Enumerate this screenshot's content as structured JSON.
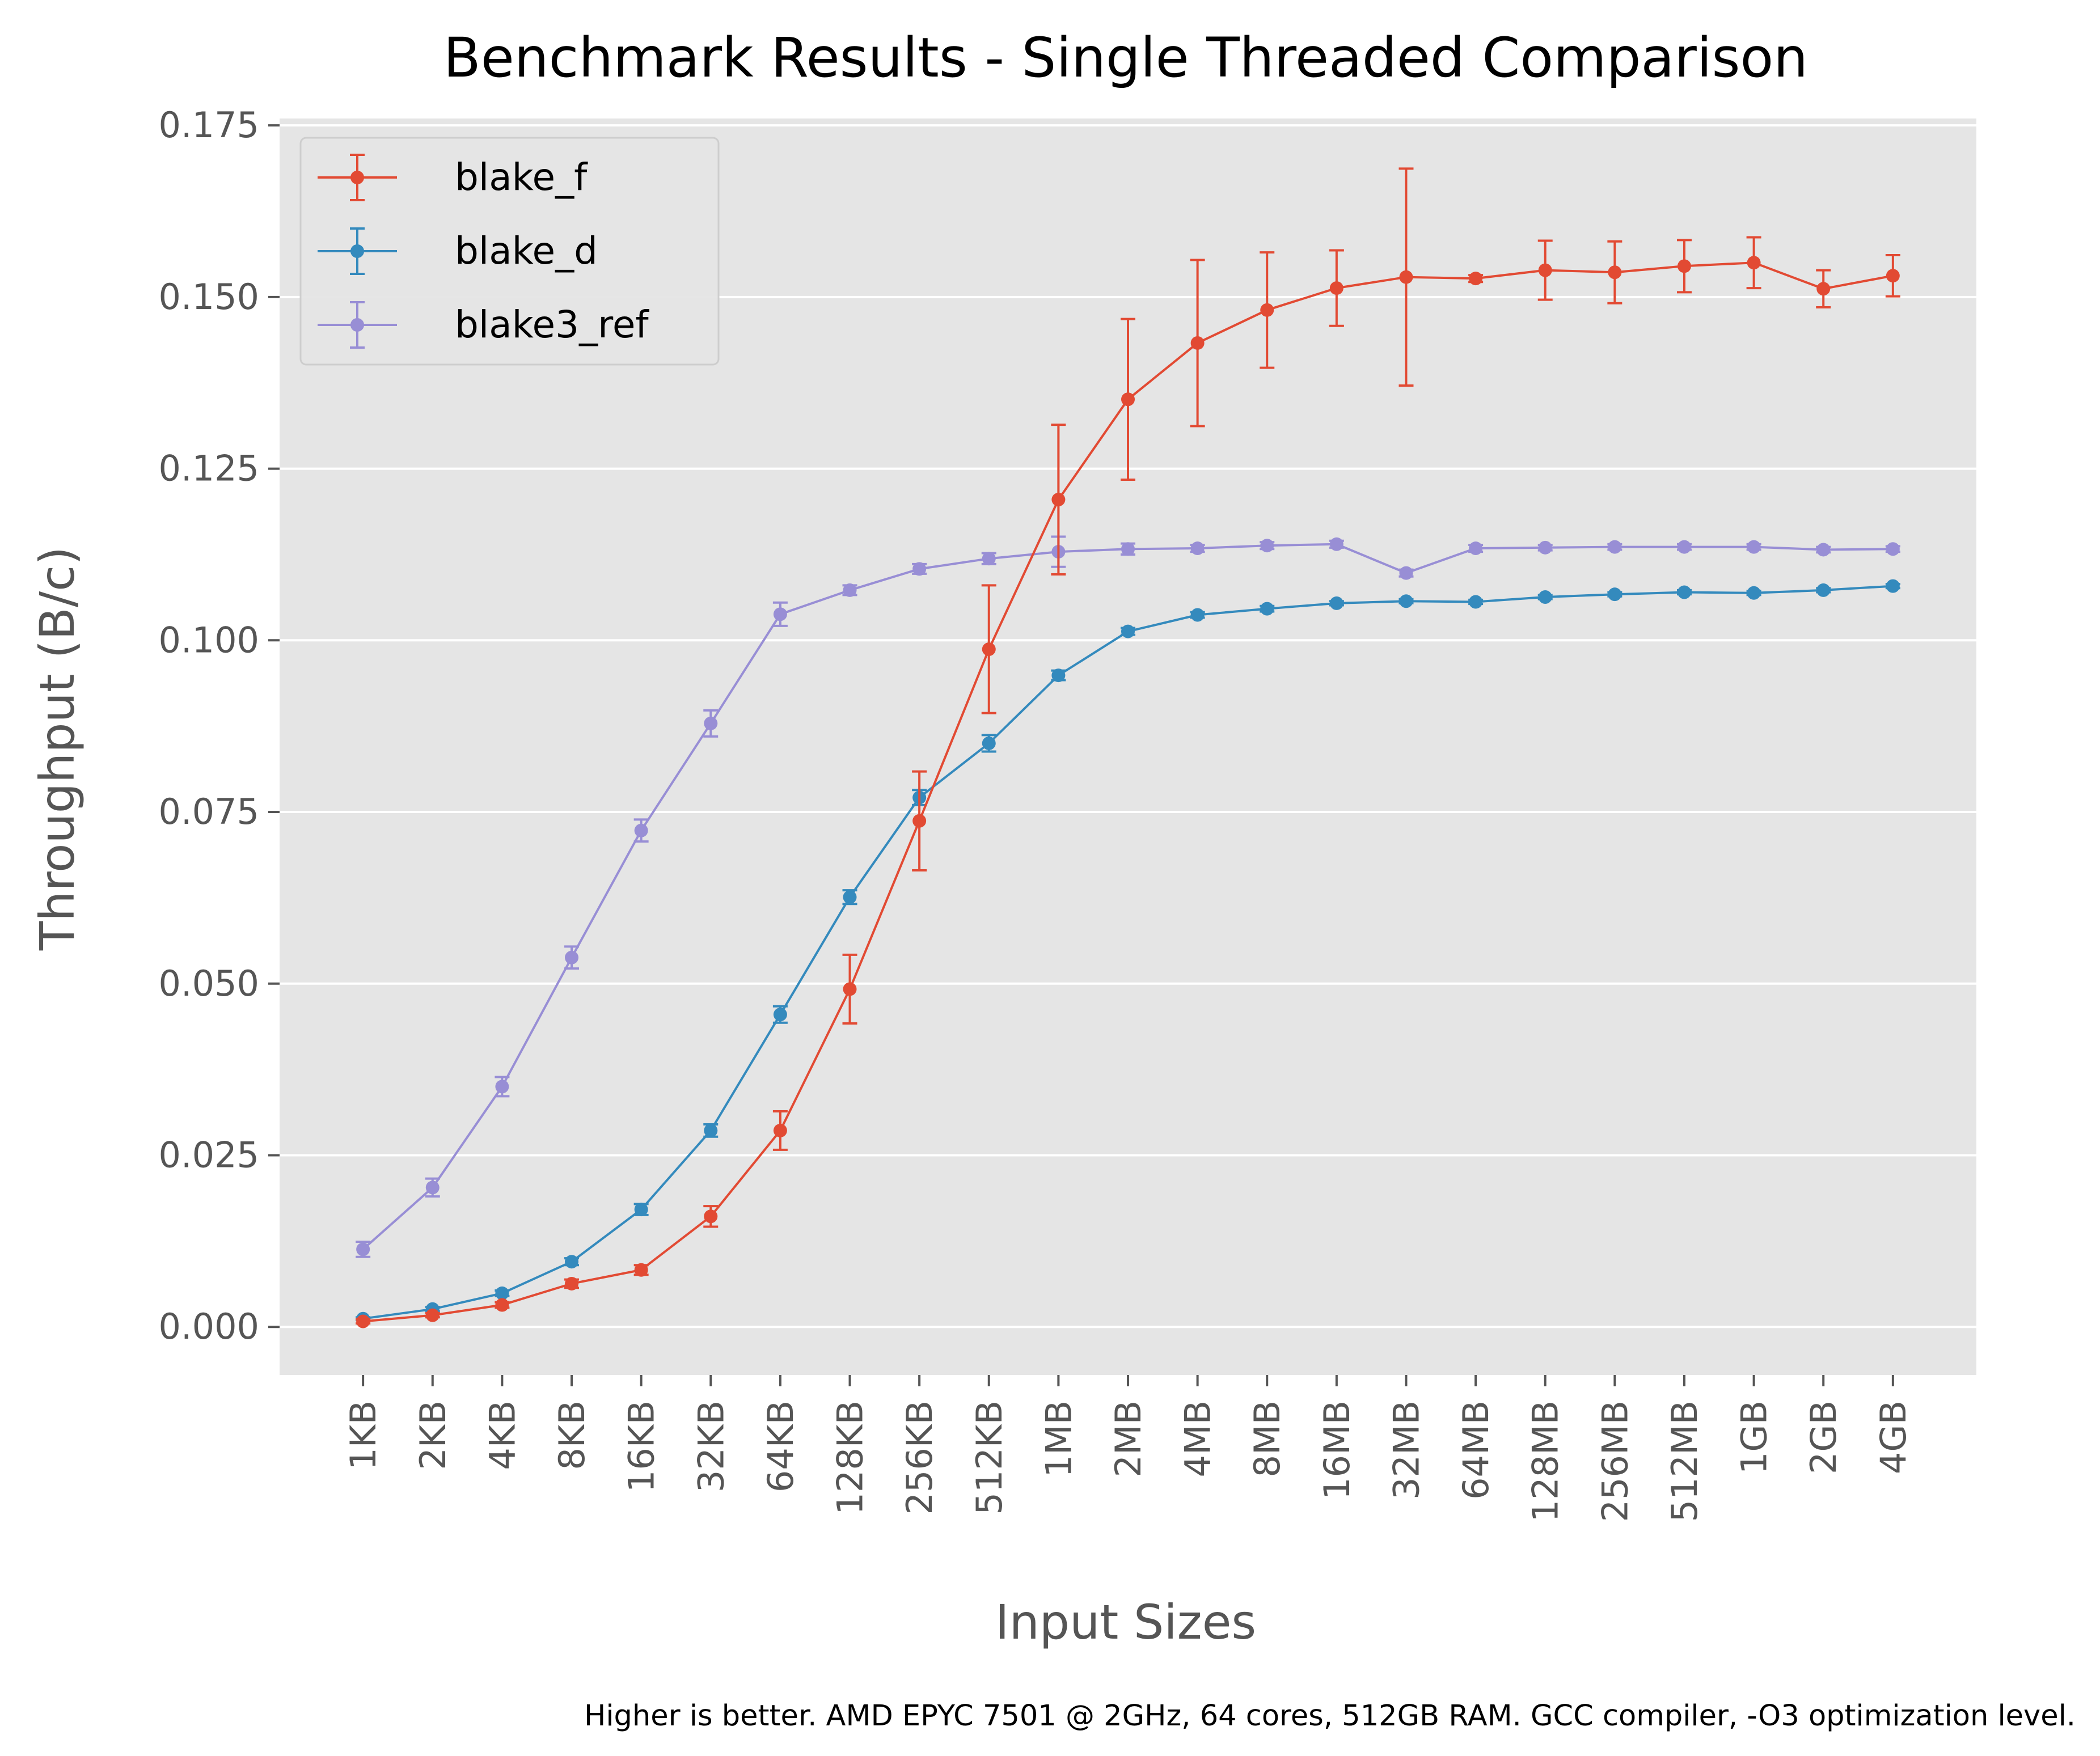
{
  "chart_data": {
    "type": "line",
    "title": "Benchmark Results - Single Threaded Comparison",
    "xlabel": "Input Sizes",
    "ylabel": "Throughput (B/c)",
    "footnote": "Higher is better. AMD EPYC 7501 @ 2GHz, 64 cores, 512GB RAM. GCC compiler, -O3 optimization level.",
    "categories": [
      "1KB",
      "2KB",
      "4KB",
      "8KB",
      "16KB",
      "32KB",
      "64KB",
      "128KB",
      "256KB",
      "512KB",
      "1MB",
      "2MB",
      "4MB",
      "8MB",
      "16MB",
      "32MB",
      "64MB",
      "128MB",
      "256MB",
      "512MB",
      "1GB",
      "2GB",
      "4GB"
    ],
    "yticks": [
      "0.000",
      "0.025",
      "0.050",
      "0.075",
      "0.100",
      "0.125",
      "0.150",
      "0.175"
    ],
    "ylim": [
      -0.007,
      0.176
    ],
    "grid": true,
    "legend_position": "top-left",
    "series": [
      {
        "name": "blake_f",
        "color": "#E24A33",
        "values": [
          0.0008,
          0.0017,
          0.0032,
          0.0063,
          0.0083,
          0.0161,
          0.0286,
          0.0492,
          0.0737,
          0.0987,
          0.1205,
          0.1351,
          0.1433,
          0.1481,
          0.1513,
          0.1529,
          0.1527,
          0.1539,
          0.1536,
          0.1545,
          0.155,
          0.1512,
          0.1531
        ],
        "errors": [
          0.0003,
          0.0003,
          0.0004,
          0.0006,
          0.0007,
          0.0015,
          0.0028,
          0.005,
          0.0072,
          0.0093,
          0.0109,
          0.0117,
          0.0121,
          0.0084,
          0.0055,
          0.0158,
          0.0005,
          0.0043,
          0.0045,
          0.0038,
          0.0037,
          0.0027,
          0.003
        ]
      },
      {
        "name": "blake_d",
        "color": "#348ABD",
        "values": [
          0.0012,
          0.0026,
          0.0049,
          0.0095,
          0.0171,
          0.0286,
          0.0455,
          0.0626,
          0.0771,
          0.085,
          0.0949,
          0.1013,
          0.1037,
          0.1046,
          0.1054,
          0.1057,
          0.1056,
          0.1063,
          0.1067,
          0.107,
          0.1069,
          0.1073,
          0.1079
        ],
        "errors": [
          0.0002,
          0.0003,
          0.0004,
          0.0005,
          0.0008,
          0.0009,
          0.0012,
          0.001,
          0.0011,
          0.0012,
          0.0007,
          0.0005,
          0.0004,
          0.0004,
          0.0003,
          0.0003,
          0.0003,
          0.0003,
          0.0003,
          0.0003,
          0.0003,
          0.0003,
          0.0003
        ]
      },
      {
        "name": "blake3_ref",
        "color": "#988ED5",
        "values": [
          0.0113,
          0.0203,
          0.035,
          0.0538,
          0.0723,
          0.0879,
          0.1038,
          0.1073,
          0.1104,
          0.1119,
          0.1129,
          0.1133,
          0.1134,
          0.1138,
          0.114,
          0.1098,
          0.1134,
          0.1135,
          0.1136,
          0.1136,
          0.1136,
          0.1132,
          0.1133
        ],
        "errors": [
          0.0011,
          0.0013,
          0.0014,
          0.0016,
          0.0016,
          0.0019,
          0.0017,
          0.0007,
          0.0007,
          0.0008,
          0.0022,
          0.0008,
          0.0005,
          0.0005,
          0.0005,
          0.0005,
          0.0005,
          0.0004,
          0.0004,
          0.0004,
          0.0004,
          0.0004,
          0.0004
        ]
      }
    ]
  }
}
